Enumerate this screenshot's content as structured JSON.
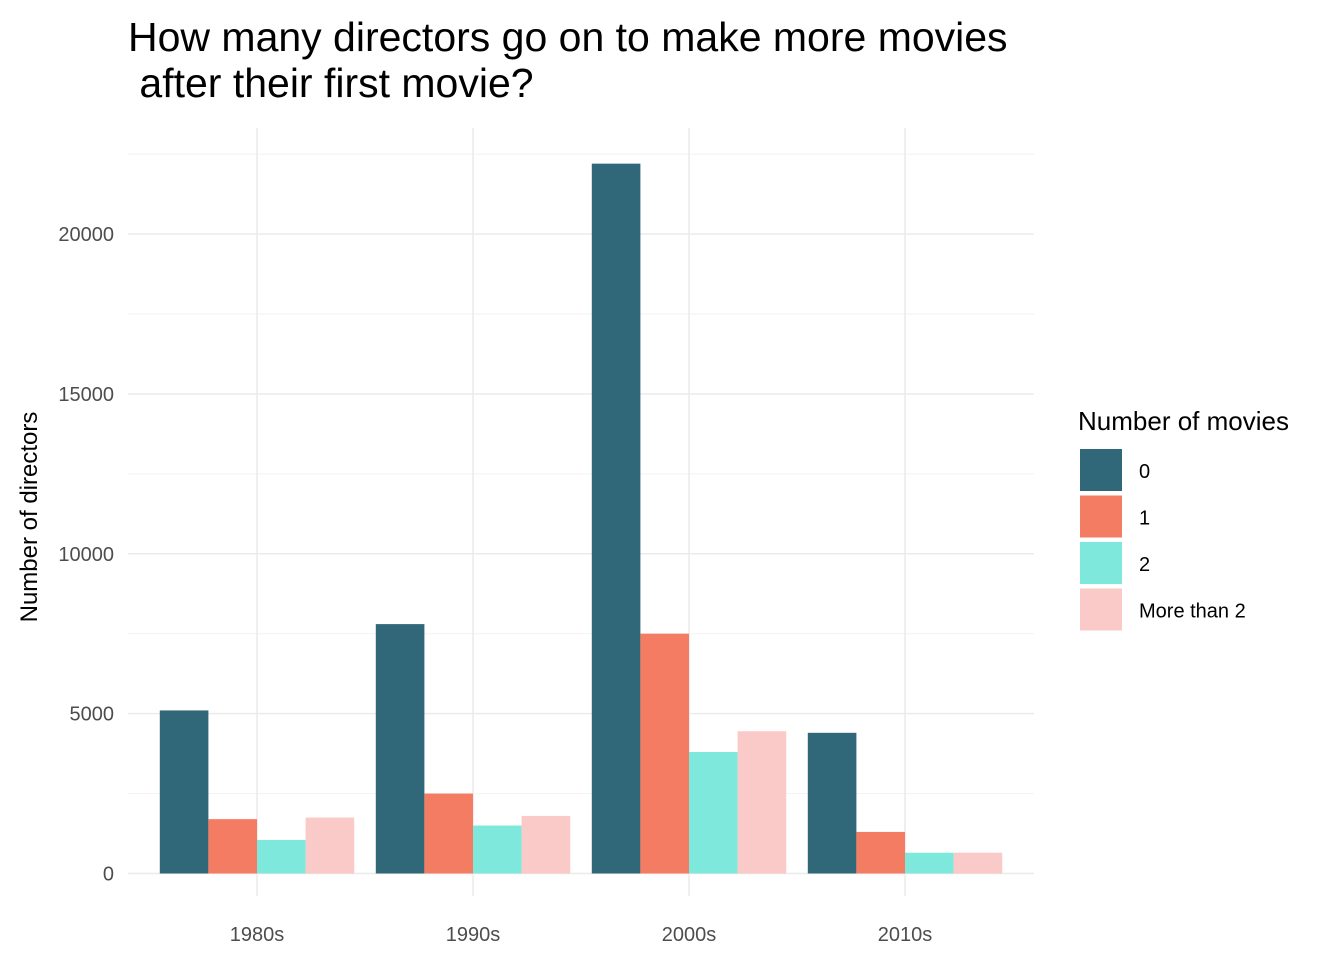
{
  "chart_data": {
    "type": "bar",
    "title_lines": [
      "How many directors go on to make more movies",
      " after their first movie?"
    ],
    "xlabel": "",
    "ylabel": "Number of directors",
    "categories": [
      "1980s",
      "1990s",
      "2000s",
      "2010s"
    ],
    "ylim": [
      0,
      23000
    ],
    "yticks": [
      0,
      5000,
      10000,
      15000,
      20000
    ],
    "grid": true,
    "legend": {
      "title": "Number of movies",
      "placement": "right"
    },
    "series": [
      {
        "name": "0",
        "color": "#30687A",
        "values": [
          5100,
          7800,
          22200,
          4400
        ]
      },
      {
        "name": "1",
        "color": "#F47C63",
        "values": [
          1700,
          2500,
          7500,
          1300
        ]
      },
      {
        "name": "2",
        "color": "#7FE8DC",
        "values": [
          1050,
          1500,
          3800,
          650
        ]
      },
      {
        "name": "More than 2",
        "color": "#FACAC8",
        "values": [
          1750,
          1800,
          4450,
          650
        ]
      }
    ]
  }
}
